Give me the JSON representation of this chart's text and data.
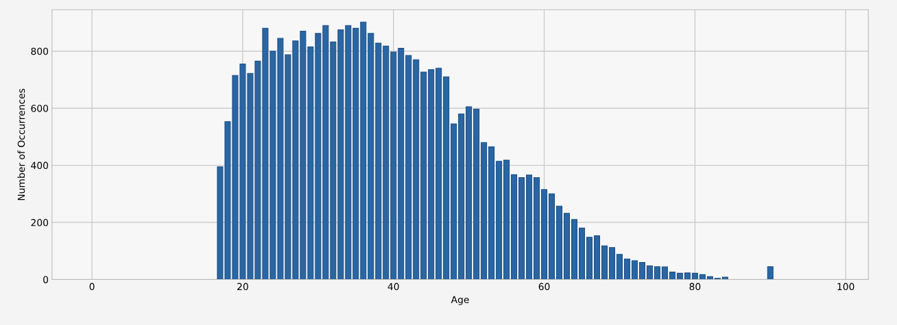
{
  "chart_data": {
    "type": "bar",
    "xlabel": "Age",
    "ylabel": "Number of Occurrences",
    "x": [
      17,
      18,
      19,
      20,
      21,
      22,
      23,
      24,
      25,
      26,
      27,
      28,
      29,
      30,
      31,
      32,
      33,
      34,
      35,
      36,
      37,
      38,
      39,
      40,
      41,
      42,
      43,
      44,
      45,
      46,
      47,
      48,
      49,
      50,
      51,
      52,
      53,
      54,
      55,
      56,
      57,
      58,
      59,
      60,
      61,
      62,
      63,
      64,
      65,
      66,
      67,
      68,
      69,
      70,
      71,
      72,
      73,
      74,
      75,
      76,
      77,
      78,
      79,
      80,
      81,
      82,
      83,
      84,
      90
    ],
    "values": [
      395,
      553,
      715,
      755,
      722,
      765,
      880,
      800,
      845,
      787,
      836,
      870,
      815,
      862,
      890,
      832,
      875,
      890,
      880,
      902,
      862,
      828,
      818,
      797,
      810,
      785,
      770,
      727,
      735,
      740,
      710,
      545,
      580,
      605,
      597,
      480,
      465,
      414,
      418,
      367,
      357,
      366,
      357,
      315,
      300,
      257,
      232,
      210,
      180,
      148,
      153,
      118,
      112,
      88,
      72,
      66,
      60,
      48,
      45,
      44,
      26,
      22,
      23,
      22,
      17,
      10,
      4,
      8,
      45
    ],
    "color": "#2a66a3",
    "xlim": [
      -5.3,
      103
    ],
    "xticks": [
      0,
      20,
      40,
      60,
      80,
      100
    ],
    "ylim": [
      0,
      945
    ],
    "yticks": [
      0,
      200,
      400,
      600,
      800
    ],
    "grid": true
  }
}
